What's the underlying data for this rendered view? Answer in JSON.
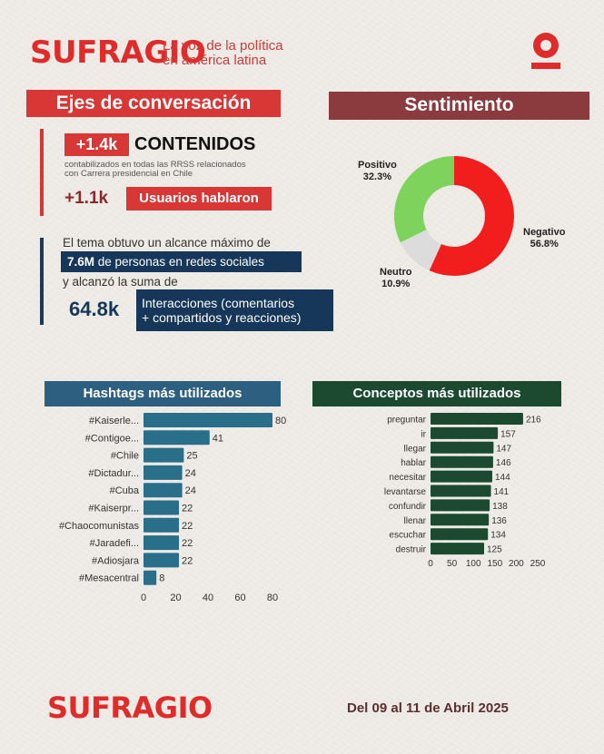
{
  "brand": {
    "logo_text": "SUFRAGIO",
    "logo_mark": "O",
    "tagline_line1": "La voz de la política",
    "tagline_line2": "en américa latina"
  },
  "ejes": {
    "title": "Ejes de conversación",
    "contenidos_value": "+1.4k",
    "contenidos_label": "CONTENIDOS",
    "contenidos_desc_line1": "contabilizados en todas las RRSS relacionados",
    "contenidos_desc_line2": "con Carrera presidencial en Chile",
    "usuarios_value": "+1.1k",
    "usuarios_label": "Usuarios hablaron",
    "alcance_line1": "El tema obtuvo un alcance máximo de",
    "alcance_value": "7.6M",
    "alcance_rest": " de personas en redes sociales",
    "alcance_line3": "y alcanzó la suma de",
    "interacciones_value": "64.8k",
    "interacciones_line1": "Interacciones (comentarios",
    "interacciones_line2": "+ compartidos y reacciones)"
  },
  "sentimiento": {
    "title": "Sentimiento"
  },
  "hashtags": {
    "title": "Hashtags más utilizados"
  },
  "conceptos": {
    "title": "Conceptos más utilizados"
  },
  "footer": {
    "logo_text": "SUFRAGIO",
    "date": "Del 09 al 11 de Abril 2025"
  },
  "colors": {
    "positivo": "#7dd35c",
    "negativo": "#f21d1d",
    "neutro": "#dcdcdc",
    "hashtag_bar": "#2a6f8a",
    "concept_bar": "#1b4a30"
  },
  "chart_data": [
    {
      "type": "pie",
      "title": "Sentimiento",
      "labels": [
        "Negativo",
        "Neutro",
        "Positivo"
      ],
      "values": [
        56.8,
        10.9,
        32.3
      ],
      "value_labels": [
        "56.8%",
        "10.9%",
        "32.3%"
      ]
    },
    {
      "type": "bar",
      "orientation": "horizontal",
      "title": "Hashtags más utilizados",
      "categories": [
        "#Kaiserle...",
        "#Contigoe...",
        "#Chile",
        "#Dictadur...",
        "#Cuba",
        "#Kaiserpr...",
        "#Chaocomunistas",
        "#Jaradefi...",
        "#Adiosjara",
        "#Mesacentral"
      ],
      "values": [
        80,
        41,
        25,
        24,
        24,
        22,
        22,
        22,
        22,
        8
      ],
      "xlim": [
        0,
        80
      ],
      "xticks": [
        0,
        20,
        40,
        60,
        80
      ],
      "grid": false
    },
    {
      "type": "bar",
      "orientation": "horizontal",
      "title": "Conceptos más utilizados",
      "categories": [
        "preguntar",
        "ir",
        "llegar",
        "hablar",
        "necesitar",
        "levantarse",
        "confundir",
        "llenar",
        "escuchar",
        "destruir"
      ],
      "values": [
        216,
        157,
        147,
        146,
        144,
        141,
        138,
        136,
        134,
        125
      ],
      "xlim": [
        0,
        250
      ],
      "xticks": [
        0,
        50,
        100,
        150,
        200,
        250
      ],
      "grid": false
    }
  ]
}
